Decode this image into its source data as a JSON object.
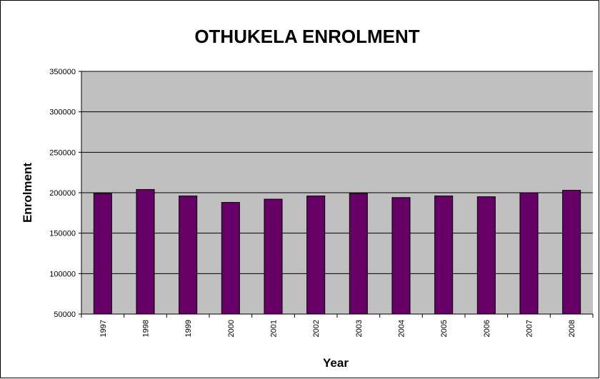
{
  "chart_data": {
    "type": "bar",
    "title": "OTHUKELA ENROLMENT",
    "x_label": "Year",
    "y_label": "Enrolment",
    "categories": [
      "1997",
      "1998",
      "1999",
      "2000",
      "2001",
      "2002",
      "2003",
      "2004",
      "2005",
      "2006",
      "2007",
      "2008"
    ],
    "values": [
      199000,
      204000,
      196000,
      188000,
      192000,
      196000,
      199000,
      194000,
      196000,
      195000,
      200000,
      203000
    ],
    "color": "#660066",
    "ylim": [
      50000,
      350000
    ],
    "yticks": [
      50000,
      100000,
      150000,
      200000,
      250000,
      300000,
      350000
    ],
    "grid": true
  }
}
